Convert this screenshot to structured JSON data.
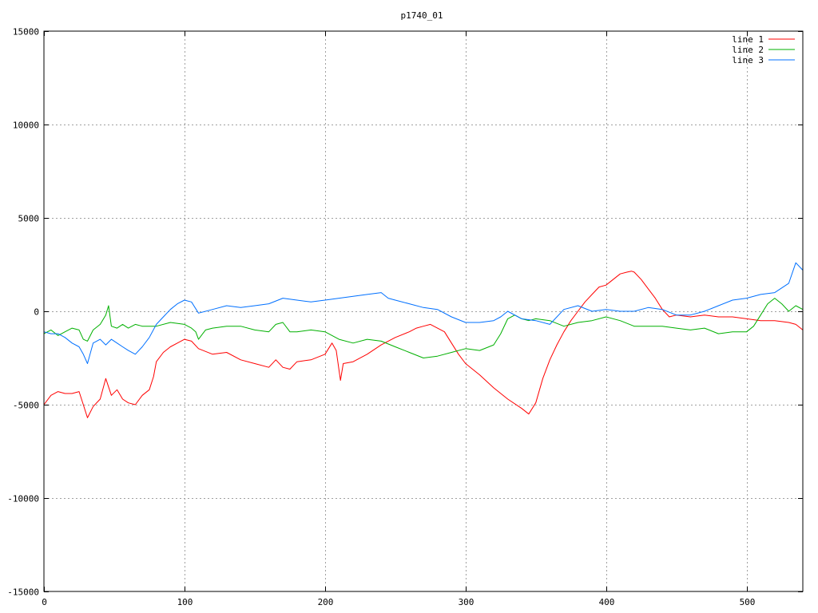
{
  "chart_data": {
    "type": "line",
    "title": "p1740_01",
    "xlim": [
      0,
      540
    ],
    "ylim": [
      -15000,
      15000
    ],
    "x_ticks": [
      0,
      100,
      200,
      300,
      400,
      500
    ],
    "y_ticks": [
      -15000,
      -10000,
      -5000,
      0,
      5000,
      10000,
      15000
    ],
    "grid": true,
    "legend_position": "top-right",
    "series": [
      {
        "name": "line 1",
        "color": "#ff0000",
        "x": [
          0,
          5,
          10,
          15,
          20,
          25,
          28,
          31,
          35,
          40,
          44,
          48,
          52,
          56,
          60,
          65,
          70,
          75,
          78,
          80,
          85,
          90,
          95,
          100,
          105,
          110,
          120,
          130,
          140,
          150,
          160,
          165,
          170,
          175,
          180,
          190,
          200,
          205,
          208,
          211,
          213,
          220,
          230,
          240,
          250,
          260,
          265,
          270,
          275,
          280,
          285,
          290,
          295,
          300,
          310,
          320,
          330,
          340,
          345,
          350,
          355,
          360,
          365,
          370,
          375,
          380,
          385,
          390,
          395,
          400,
          405,
          410,
          415,
          418,
          420,
          425,
          430,
          435,
          440,
          445,
          450,
          460,
          470,
          480,
          490,
          500,
          510,
          520,
          530,
          535,
          540
        ],
        "y": [
          -5000,
          -4500,
          -4300,
          -4400,
          -4400,
          -4300,
          -5000,
          -5700,
          -5100,
          -4700,
          -3600,
          -4500,
          -4200,
          -4700,
          -4900,
          -5000,
          -4500,
          -4200,
          -3500,
          -2700,
          -2200,
          -1900,
          -1700,
          -1500,
          -1600,
          -2000,
          -2300,
          -2200,
          -2600,
          -2800,
          -3000,
          -2600,
          -3000,
          -3100,
          -2700,
          -2600,
          -2300,
          -1700,
          -2100,
          -3700,
          -2800,
          -2700,
          -2300,
          -1800,
          -1400,
          -1100,
          -900,
          -800,
          -700,
          -900,
          -1100,
          -1700,
          -2300,
          -2800,
          -3400,
          -4100,
          -4700,
          -5200,
          -5500,
          -4900,
          -3600,
          -2600,
          -1800,
          -1100,
          -500,
          0,
          500,
          900,
          1300,
          1400,
          1700,
          2000,
          2100,
          2150,
          2100,
          1700,
          1200,
          700,
          100,
          -300,
          -200,
          -300,
          -200,
          -300,
          -300,
          -400,
          -500,
          -500,
          -600,
          -700,
          -1000
        ]
      },
      {
        "name": "line 2",
        "color": "#00b000",
        "x": [
          0,
          5,
          10,
          15,
          20,
          25,
          28,
          31,
          35,
          40,
          44,
          46,
          48,
          52,
          56,
          60,
          65,
          70,
          75,
          80,
          90,
          100,
          105,
          108,
          110,
          115,
          120,
          130,
          140,
          150,
          160,
          165,
          170,
          175,
          180,
          190,
          200,
          210,
          220,
          230,
          240,
          250,
          260,
          270,
          280,
          290,
          300,
          310,
          320,
          325,
          330,
          335,
          340,
          345,
          350,
          360,
          370,
          380,
          390,
          400,
          410,
          420,
          430,
          440,
          450,
          460,
          470,
          480,
          490,
          500,
          505,
          510,
          515,
          520,
          525,
          530,
          535,
          540
        ],
        "y": [
          -1200,
          -1000,
          -1300,
          -1100,
          -900,
          -1000,
          -1500,
          -1600,
          -1000,
          -700,
          -200,
          300,
          -800,
          -900,
          -700,
          -900,
          -700,
          -800,
          -800,
          -800,
          -600,
          -700,
          -900,
          -1100,
          -1500,
          -1000,
          -900,
          -800,
          -800,
          -1000,
          -1100,
          -700,
          -600,
          -1100,
          -1100,
          -1000,
          -1100,
          -1500,
          -1700,
          -1500,
          -1600,
          -1900,
          -2200,
          -2500,
          -2400,
          -2200,
          -2000,
          -2100,
          -1800,
          -1200,
          -400,
          -200,
          -400,
          -500,
          -400,
          -500,
          -800,
          -600,
          -500,
          -300,
          -500,
          -800,
          -800,
          -800,
          -900,
          -1000,
          -900,
          -1200,
          -1100,
          -1100,
          -800,
          -200,
          400,
          700,
          400,
          0,
          300,
          100
        ]
      },
      {
        "name": "line 3",
        "color": "#0070ff",
        "x": [
          0,
          5,
          10,
          15,
          20,
          25,
          28,
          31,
          35,
          40,
          44,
          48,
          52,
          56,
          60,
          65,
          70,
          75,
          80,
          85,
          90,
          95,
          100,
          105,
          110,
          120,
          130,
          140,
          150,
          160,
          170,
          180,
          190,
          200,
          210,
          220,
          230,
          240,
          245,
          250,
          260,
          270,
          280,
          290,
          300,
          310,
          320,
          325,
          330,
          340,
          350,
          360,
          370,
          380,
          390,
          400,
          410,
          420,
          430,
          440,
          450,
          460,
          470,
          480,
          490,
          500,
          510,
          520,
          530,
          535,
          540
        ],
        "y": [
          -1100,
          -1200,
          -1200,
          -1400,
          -1700,
          -1900,
          -2300,
          -2800,
          -1700,
          -1500,
          -1800,
          -1500,
          -1700,
          -1900,
          -2100,
          -2300,
          -1900,
          -1400,
          -700,
          -300,
          100,
          400,
          600,
          500,
          -100,
          100,
          300,
          200,
          300,
          400,
          700,
          600,
          500,
          600,
          700,
          800,
          900,
          1000,
          700,
          600,
          400,
          200,
          100,
          -300,
          -600,
          -600,
          -500,
          -300,
          0,
          -400,
          -500,
          -700,
          100,
          300,
          0,
          100,
          0,
          0,
          200,
          100,
          -200,
          -200,
          0,
          300,
          600,
          700,
          900,
          1000,
          1500,
          2600,
          2200
        ]
      }
    ]
  }
}
